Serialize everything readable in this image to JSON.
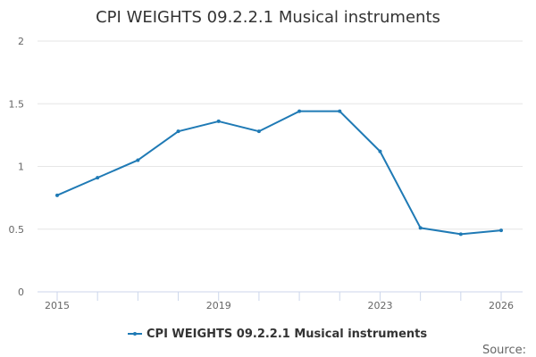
{
  "chart_data": {
    "type": "line",
    "title": "CPI WEIGHTS 09.2.2.1 Musical instruments",
    "xlabel": "",
    "ylabel": "",
    "x": [
      2015,
      2016,
      2017,
      2018,
      2019,
      2020,
      2021,
      2022,
      2023,
      2024,
      2025,
      2026
    ],
    "series": [
      {
        "name": "CPI WEIGHTS 09.2.2.1 Musical instruments",
        "color": "#1f7ab5",
        "values": [
          0.77,
          0.91,
          1.05,
          1.28,
          1.36,
          1.28,
          1.44,
          1.44,
          1.12,
          0.51,
          0.46,
          0.49
        ]
      }
    ],
    "xlim": [
      2015,
      2026
    ],
    "ylim": [
      0,
      2
    ],
    "x_ticks": [
      2015,
      2019,
      2023,
      2026
    ],
    "y_ticks": [
      0,
      0.5,
      1,
      1.5,
      2
    ],
    "grid": "horizontal",
    "legend_position": "bottom-center"
  },
  "credits": "Source:",
  "colors": {
    "series": "#1f7ab5",
    "grid": "#e6e6e6",
    "axis": "#ccd6eb",
    "text": "#333333",
    "muted": "#666666"
  }
}
